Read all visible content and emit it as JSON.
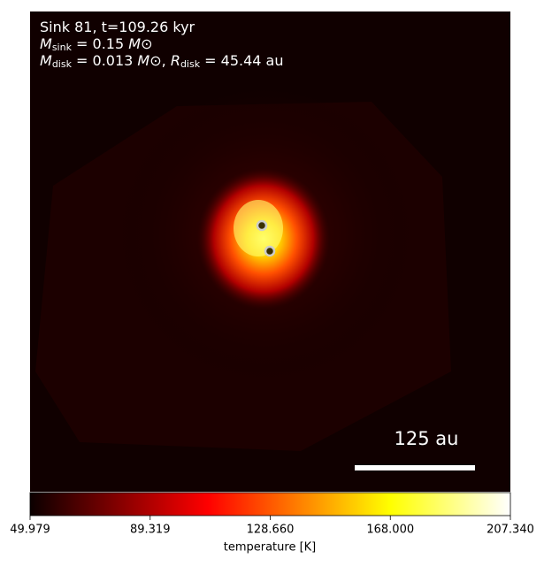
{
  "chart_data": {
    "type": "image",
    "annotation_lines": [
      [
        "Sink 81, t=109.26 kyr"
      ],
      [
        "M",
        "sink",
        " = 0.15 ",
        "M",
        "⊙"
      ],
      [
        "M",
        "disk",
        " = 0.013 ",
        "M",
        "⊙",
        ", ",
        "R",
        "disk",
        " = 45.44 au"
      ]
    ],
    "scale_bar_label": "125 au",
    "colormap": "hot",
    "clim": [
      49.979,
      207.34
    ],
    "colorbar_ticks": [
      49.979,
      89.319,
      {
        "value": 128.66,
        "label": "128.660"
      },
      {
        "value": 168,
        "label": "168.000"
      },
      {
        "value": 207.34,
        "label": "207.340"
      }
    ],
    "colorbar_label": "temperature [K]"
  }
}
